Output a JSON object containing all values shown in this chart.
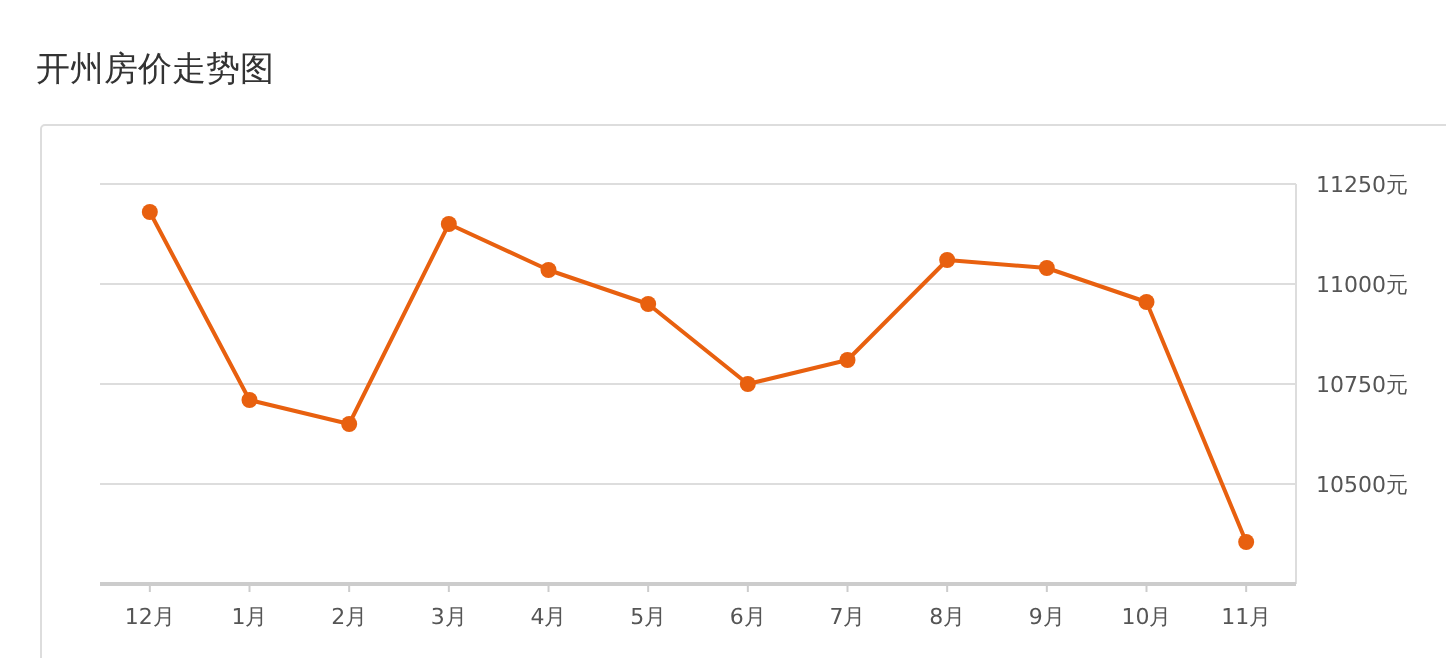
{
  "chart_data": {
    "type": "line",
    "title": "开州房价走势图",
    "categories": [
      "12月",
      "1月",
      "2月",
      "3月",
      "4月",
      "5月",
      "6月",
      "7月",
      "8月",
      "9月",
      "10月",
      "11月"
    ],
    "series": [
      {
        "color": "#e8600f",
        "values": [
          11180,
          10710,
          10650,
          11150,
          11035,
          10950,
          10750,
          10810,
          11060,
          11040,
          10955,
          10355
        ]
      }
    ],
    "ylim": [
      10250,
      11250
    ],
    "yticks": [
      {
        "value": 10250,
        "label": null
      },
      {
        "value": 10500,
        "label": "10500元"
      },
      {
        "value": 10750,
        "label": "10750元"
      },
      {
        "value": 11000,
        "label": "11000元"
      },
      {
        "value": 11250,
        "label": "11250元"
      }
    ],
    "grid": "y",
    "marker": "circle",
    "line_style": "solid"
  }
}
